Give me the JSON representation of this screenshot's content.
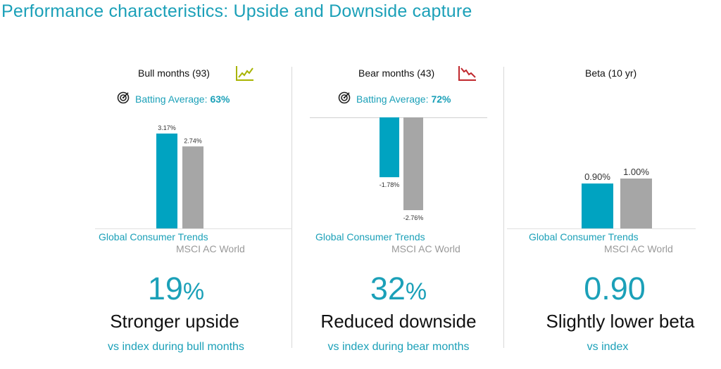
{
  "page_title": "Performance characteristics: Upside and Downside capture",
  "panels": [
    {
      "title": "Bull months (93)",
      "icon": "trend-up-icon",
      "icon_color": "#a8b400",
      "batting_label": "Batting Average:",
      "batting_value": "63%",
      "legend_a": "Global Consumer Trends",
      "legend_b": "MSCI AC World",
      "big_value": "19",
      "big_unit": "%",
      "caption": "Stronger upside",
      "subcaption": "vs index during bull months"
    },
    {
      "title": "Bear months (43)",
      "icon": "trend-down-icon",
      "icon_color": "#c0282d",
      "batting_label": "Batting Average:",
      "batting_value": "72%",
      "legend_a": "Global Consumer Trends",
      "legend_b": "MSCI AC World",
      "big_value": "32",
      "big_unit": "%",
      "caption": "Reduced downside",
      "subcaption": "vs index during bear months"
    },
    {
      "title": "Beta (10 yr)",
      "legend_a": "Global Consumer Trends",
      "legend_b": "MSCI AC World",
      "big_value": "0.90",
      "big_unit": "",
      "caption": "Slightly lower beta",
      "subcaption": "vs index"
    }
  ],
  "colors": {
    "accent": "#1ba0b8",
    "fund": "#00a3c1",
    "index": "#a6a6a6"
  },
  "chart_data": [
    {
      "type": "bar",
      "title": "Bull months (93)",
      "categories": [
        "Global Consumer Trends",
        "MSCI AC World"
      ],
      "values": [
        3.17,
        2.74
      ],
      "labels": [
        "3.17%",
        "2.74%"
      ],
      "ylim": [
        0,
        3.17
      ]
    },
    {
      "type": "bar",
      "title": "Bear months (43)",
      "categories": [
        "Global Consumer Trends",
        "MSCI AC World"
      ],
      "values": [
        -1.78,
        -2.76
      ],
      "labels": [
        "-1.78%",
        "-2.76%"
      ],
      "ylim": [
        -2.76,
        0
      ]
    },
    {
      "type": "bar",
      "title": "Beta (10 yr)",
      "categories": [
        "Global Consumer Trends",
        "MSCI AC World"
      ],
      "values": [
        0.9,
        1.0
      ],
      "labels": [
        "0.90%",
        "1.00%"
      ],
      "ylim": [
        0,
        1.0
      ]
    }
  ]
}
